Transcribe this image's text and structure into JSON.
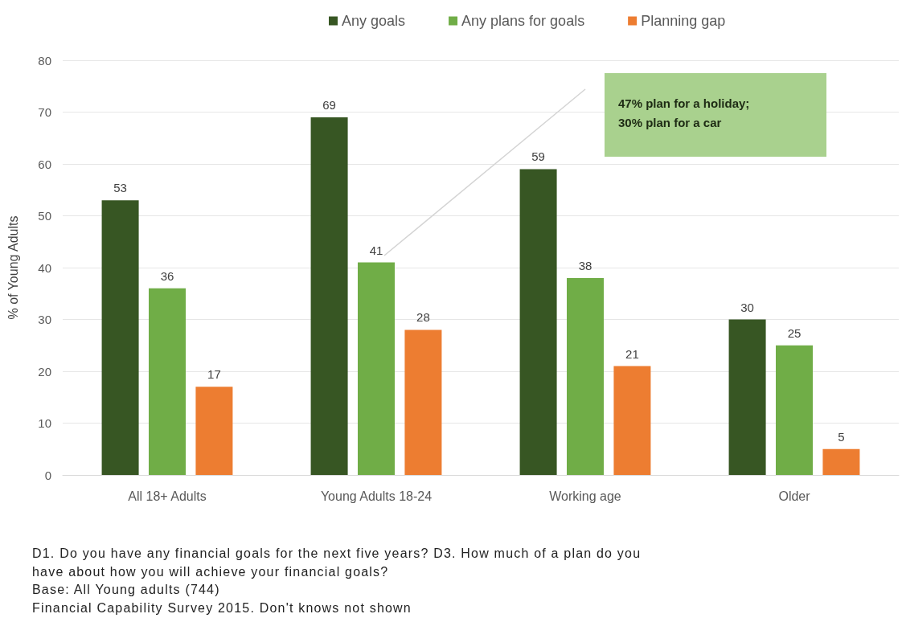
{
  "chart_data": {
    "type": "bar",
    "ylabel": "% of Young Adults",
    "categories": [
      "All 18+ Adults",
      "Young Adults 18-24",
      "Working age",
      "Older"
    ],
    "series": [
      {
        "name": "Any goals",
        "color": "#375623",
        "values": [
          53,
          69,
          59,
          30
        ]
      },
      {
        "name": "Any plans for goals",
        "color": "#70ad47",
        "values": [
          36,
          41,
          38,
          25
        ]
      },
      {
        "name": "Planning gap",
        "color": "#ed7d31",
        "values": [
          17,
          28,
          21,
          5
        ]
      }
    ],
    "ylim": [
      0,
      80
    ],
    "yticks": [
      0,
      10,
      20,
      30,
      40,
      50,
      60,
      70,
      80
    ],
    "grid": "y",
    "legend": "top",
    "data_labels": true,
    "annotations": [
      "47% plan for a holiday; 30% plan for a car",
      "D1. Do you have any financial goals for the next five years? D3. How much of a plan do you have about how you will achieve your financial goals?",
      "Base: All Young adults (744)",
      "Financial Capability Survey 2015. Don't knows not shown"
    ]
  }
}
